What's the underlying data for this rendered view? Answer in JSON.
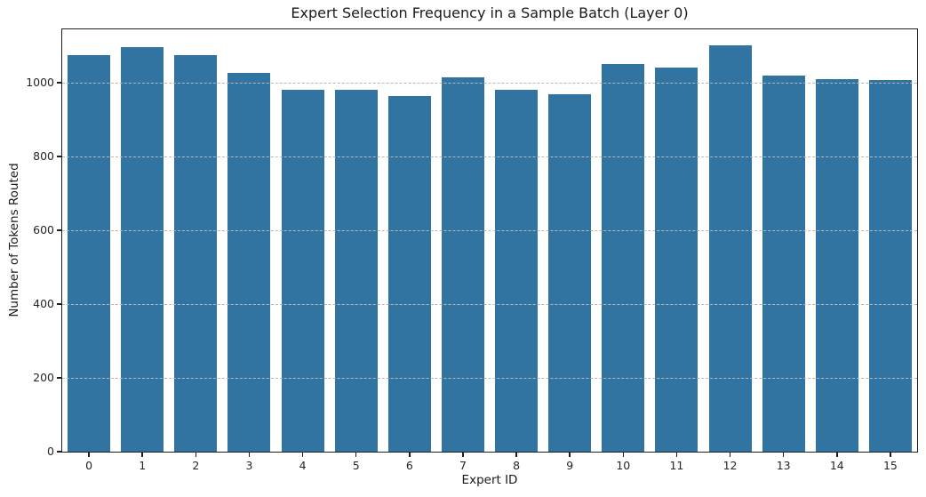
{
  "chart_data": {
    "type": "bar",
    "title": "Expert Selection Frequency in a Sample Batch (Layer 0)",
    "xlabel": "Expert ID",
    "ylabel": "Number of Tokens Routed",
    "categories": [
      "0",
      "1",
      "2",
      "3",
      "4",
      "5",
      "6",
      "7",
      "8",
      "9",
      "10",
      "11",
      "12",
      "13",
      "14",
      "15"
    ],
    "values": [
      1075,
      1097,
      1075,
      1025,
      980,
      981,
      963,
      1014,
      980,
      968,
      1050,
      1040,
      1100,
      1020,
      1010,
      1006
    ],
    "yticks": [
      0,
      200,
      400,
      600,
      800,
      1000
    ],
    "ylim": [
      0,
      1144
    ],
    "xlim": [
      -0.5,
      15.5
    ],
    "bar_width_fraction": 0.8,
    "bar_color": "#3274a1",
    "grid": {
      "axis": "y",
      "style": "dashed",
      "color": "#b8b8b8",
      "on_top_of_bars": true
    },
    "legend_position": "none",
    "background_color": "#ffffff",
    "spine_color": "#1f1f1f"
  }
}
